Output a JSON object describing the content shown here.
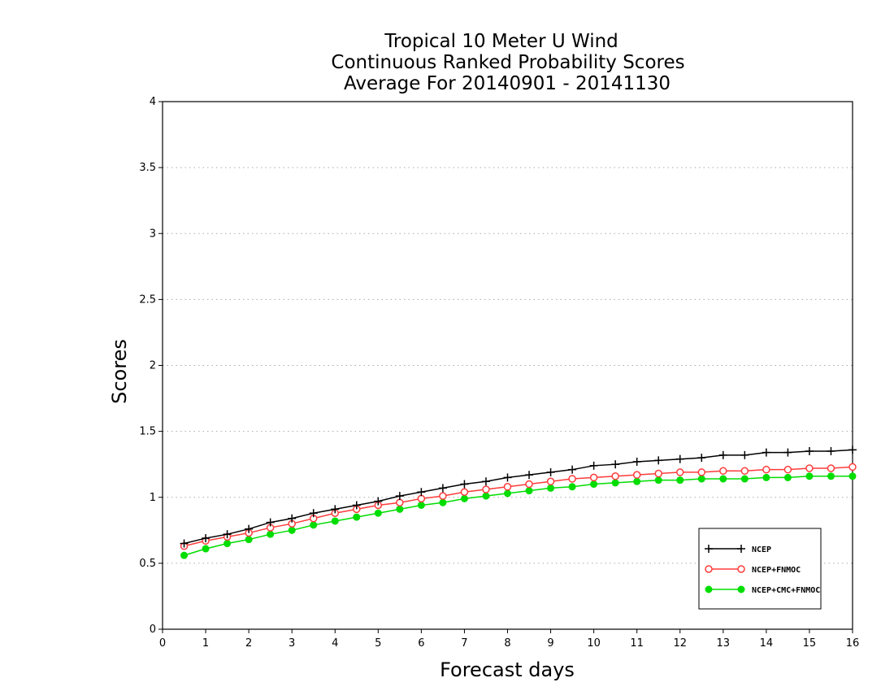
{
  "chart_data": {
    "type": "line",
    "title_lines": [
      "Tropical 10 Meter U Wind",
      "Continuous Ranked Probability Scores",
      "Average For 20140901 - 20141130"
    ],
    "xlabel": "Forecast days",
    "ylabel": "Scores",
    "xlim": [
      0,
      16
    ],
    "ylim": [
      0,
      4
    ],
    "x_ticks": [
      0,
      1,
      2,
      3,
      4,
      5,
      6,
      7,
      8,
      9,
      10,
      11,
      12,
      13,
      14,
      15,
      16
    ],
    "y_ticks": [
      0,
      0.5,
      1,
      1.5,
      2,
      2.5,
      3,
      3.5,
      4
    ],
    "y_tick_labels": [
      "0",
      "0.5",
      "1",
      "1.5",
      "2",
      "2.5",
      "3",
      "3.5",
      "4"
    ],
    "grid": "horizontal dotted",
    "legend_position": "bottom-right",
    "x": [
      0.5,
      1,
      1.5,
      2,
      2.5,
      3,
      3.5,
      4,
      4.5,
      5,
      5.5,
      6,
      6.5,
      7,
      7.5,
      8,
      8.5,
      9,
      9.5,
      10,
      10.5,
      11,
      11.5,
      12,
      12.5,
      13,
      13.5,
      14,
      14.5,
      15,
      15.5,
      16
    ],
    "series": [
      {
        "name": "NCEP",
        "color": "#000000",
        "marker": "plus",
        "values": [
          0.65,
          0.69,
          0.72,
          0.76,
          0.81,
          0.84,
          0.88,
          0.91,
          0.94,
          0.97,
          1.01,
          1.04,
          1.07,
          1.1,
          1.12,
          1.15,
          1.17,
          1.19,
          1.21,
          1.24,
          1.25,
          1.27,
          1.28,
          1.29,
          1.3,
          1.32,
          1.32,
          1.34,
          1.34,
          1.35,
          1.35,
          1.36
        ]
      },
      {
        "name": "NCEP+FNMOC",
        "color": "#ff3b3b",
        "marker": "open-circle",
        "values": [
          0.63,
          0.67,
          0.7,
          0.73,
          0.77,
          0.8,
          0.84,
          0.88,
          0.91,
          0.94,
          0.96,
          0.99,
          1.01,
          1.04,
          1.06,
          1.08,
          1.1,
          1.12,
          1.14,
          1.15,
          1.16,
          1.17,
          1.18,
          1.19,
          1.19,
          1.2,
          1.2,
          1.21,
          1.21,
          1.22,
          1.22,
          1.23
        ]
      },
      {
        "name": "NCEP+CMC+FNMOC",
        "color": "#00dd00",
        "marker": "filled-circle",
        "values": [
          0.56,
          0.61,
          0.65,
          0.68,
          0.72,
          0.75,
          0.79,
          0.82,
          0.85,
          0.88,
          0.91,
          0.94,
          0.96,
          0.99,
          1.01,
          1.03,
          1.05,
          1.07,
          1.08,
          1.1,
          1.11,
          1.12,
          1.13,
          1.13,
          1.14,
          1.14,
          1.14,
          1.15,
          1.15,
          1.16,
          1.16,
          1.16
        ]
      }
    ]
  }
}
